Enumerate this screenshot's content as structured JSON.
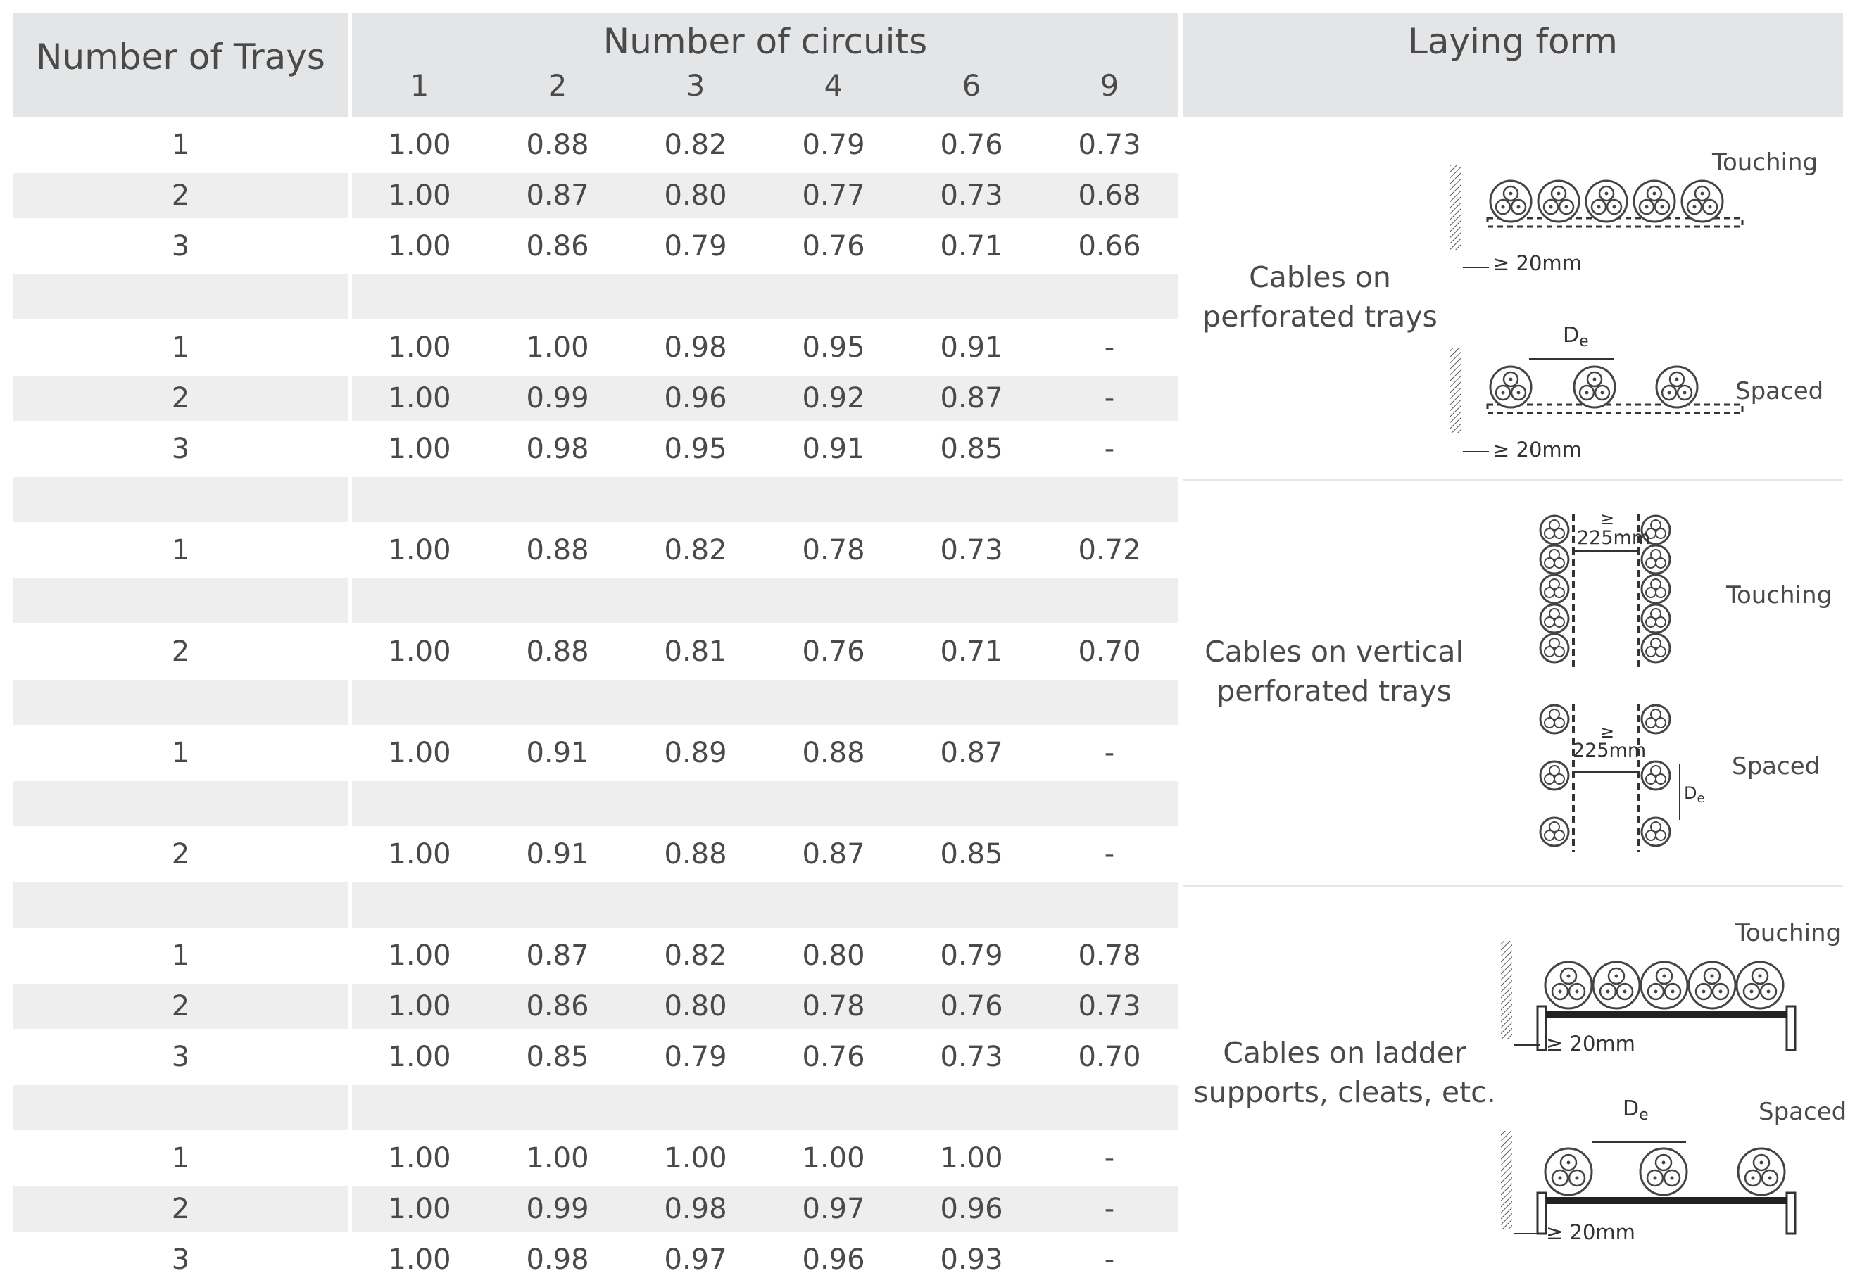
{
  "header": {
    "trays_label": "Number of Trays",
    "circuits_label": "Number of circuits",
    "laying_label": "Laying form",
    "circuit_counts": [
      "1",
      "2",
      "3",
      "4",
      "6",
      "9"
    ]
  },
  "rows": [
    {
      "trays": "1",
      "values": [
        "1.00",
        "0.88",
        "0.82",
        "0.79",
        "0.76",
        "0.73"
      ]
    },
    {
      "trays": "2",
      "values": [
        "1.00",
        "0.87",
        "0.80",
        "0.77",
        "0.73",
        "0.68"
      ]
    },
    {
      "trays": "3",
      "values": [
        "1.00",
        "0.86",
        "0.79",
        "0.76",
        "0.71",
        "0.66"
      ]
    },
    {
      "trays": "",
      "values": [
        "",
        "",
        "",
        "",
        "",
        ""
      ]
    },
    {
      "trays": "1",
      "values": [
        "1.00",
        "1.00",
        "0.98",
        "0.95",
        "0.91",
        "-"
      ]
    },
    {
      "trays": "2",
      "values": [
        "1.00",
        "0.99",
        "0.96",
        "0.92",
        "0.87",
        "-"
      ]
    },
    {
      "trays": "3",
      "values": [
        "1.00",
        "0.98",
        "0.95",
        "0.91",
        "0.85",
        "-"
      ]
    },
    {
      "trays": "",
      "values": [
        "",
        "",
        "",
        "",
        "",
        ""
      ]
    },
    {
      "trays": "1",
      "values": [
        "1.00",
        "0.88",
        "0.82",
        "0.78",
        "0.73",
        "0.72"
      ]
    },
    {
      "trays": "",
      "values": [
        "",
        "",
        "",
        "",
        "",
        ""
      ]
    },
    {
      "trays": "2",
      "values": [
        "1.00",
        "0.88",
        "0.81",
        "0.76",
        "0.71",
        "0.70"
      ]
    },
    {
      "trays": "",
      "values": [
        "",
        "",
        "",
        "",
        "",
        ""
      ]
    },
    {
      "trays": "1",
      "values": [
        "1.00",
        "0.91",
        "0.89",
        "0.88",
        "0.87",
        "-"
      ]
    },
    {
      "trays": "",
      "values": [
        "",
        "",
        "",
        "",
        "",
        ""
      ]
    },
    {
      "trays": "2",
      "values": [
        "1.00",
        "0.91",
        "0.88",
        "0.87",
        "0.85",
        "-"
      ]
    },
    {
      "trays": "",
      "values": [
        "",
        "",
        "",
        "",
        "",
        ""
      ]
    },
    {
      "trays": "1",
      "values": [
        "1.00",
        "0.87",
        "0.82",
        "0.80",
        "0.79",
        "0.78"
      ]
    },
    {
      "trays": "2",
      "values": [
        "1.00",
        "0.86",
        "0.80",
        "0.78",
        "0.76",
        "0.73"
      ]
    },
    {
      "trays": "3",
      "values": [
        "1.00",
        "0.85",
        "0.79",
        "0.76",
        "0.73",
        "0.70"
      ]
    },
    {
      "trays": "",
      "values": [
        "",
        "",
        "",
        "",
        "",
        ""
      ]
    },
    {
      "trays": "1",
      "values": [
        "1.00",
        "1.00",
        "1.00",
        "1.00",
        "1.00",
        "-"
      ]
    },
    {
      "trays": "2",
      "values": [
        "1.00",
        "0.99",
        "0.98",
        "0.97",
        "0.96",
        "-"
      ]
    },
    {
      "trays": "3",
      "values": [
        "1.00",
        "0.98",
        "0.97",
        "0.96",
        "0.93",
        "-"
      ]
    }
  ],
  "sections": [
    {
      "label_line1": "Cables on",
      "label_line2": "perforated trays",
      "touching_label": "Touching",
      "spaced_label": "Spaced",
      "clearance_label": "≥ 20mm",
      "clearance_label_2": "≥ 20mm",
      "de_label": "D",
      "de_sub": "e"
    },
    {
      "label_line1": "Cables on vertical",
      "label_line2": "perforated trays",
      "touching_label": "Touching",
      "spaced_label": "Spaced",
      "ge_symbol": "≥",
      "gap_value": "225mm",
      "ge_symbol_2": "≥",
      "gap_value_2": "225mm",
      "de_label": "D",
      "de_sub": "e"
    },
    {
      "label_line1": "Cables on ladder",
      "label_line2": "supports, cleats, etc.",
      "touching_label": "Touching",
      "spaced_label": "Spaced",
      "clearance_label": "≥ 20mm",
      "clearance_label_2": "≥ 20mm",
      "de_label": "D",
      "de_sub": "e"
    }
  ]
}
